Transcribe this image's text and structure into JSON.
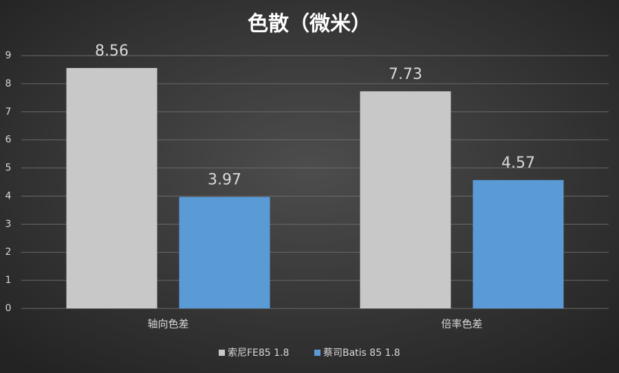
{
  "chart_data": {
    "type": "bar",
    "title": "色散（微米）",
    "categories": [
      "轴向色差",
      "倍率色差"
    ],
    "series": [
      {
        "name": "索尼FE85 1.8",
        "color": "#c8c8c8",
        "values": [
          8.56,
          7.73
        ]
      },
      {
        "name": "蔡司Batis 85 1.8",
        "color": "#5b9bd5",
        "values": [
          3.97,
          4.57
        ]
      }
    ],
    "ylim": [
      0,
      9
    ],
    "yticks": [
      0,
      1,
      2,
      3,
      4,
      5,
      6,
      7,
      8,
      9
    ],
    "grid": true,
    "legend": "bottom"
  }
}
